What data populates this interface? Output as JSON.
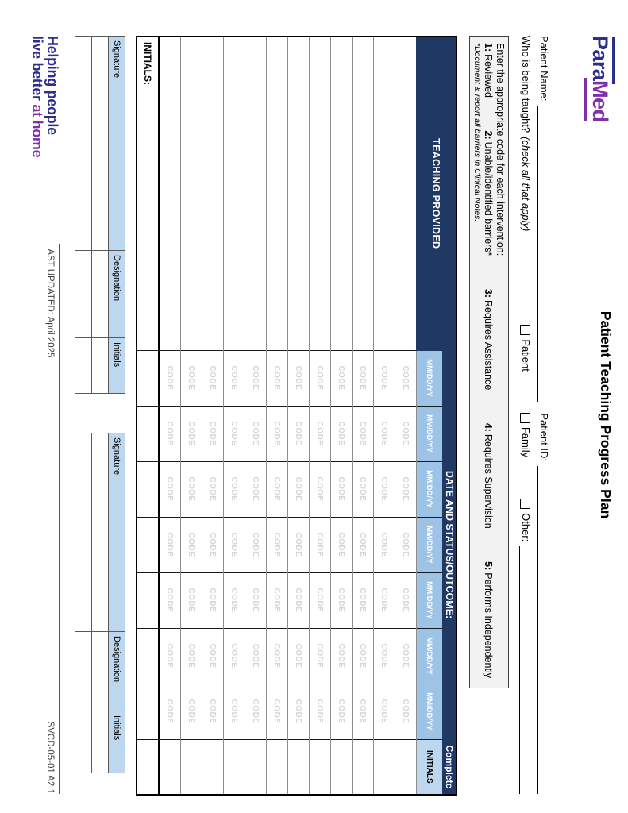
{
  "page": {
    "title": "Patient Teaching Progress Plan",
    "logo": {
      "part1": "Para",
      "part2": "Med"
    },
    "tagline": {
      "line1": "Helping people",
      "line2_prefix": "live better ",
      "line2_suffix": "at home"
    },
    "footer": {
      "last_updated": "LAST UPDATED: April 2025",
      "doc_code": "SVCD-05-01 A2.1"
    }
  },
  "fields": {
    "patient_name_label": "Patient Name:",
    "patient_id_label": "Patient ID:",
    "who_label": "Who is being taught?",
    "who_note": "(check all that apply)",
    "checkboxes": [
      {
        "label": "Patient"
      },
      {
        "label": "Family"
      },
      {
        "label": "Other:"
      }
    ]
  },
  "legend": {
    "line1": "Enter the appropriate code for each intervention:",
    "codes": [
      {
        "num": "1:",
        "text": "Reviewed"
      },
      {
        "num": "2:",
        "text": "Unable/identified barriers*"
      },
      {
        "num": "3:",
        "text": "Requires Assistance"
      },
      {
        "num": "4:",
        "text": "Requires Supervision"
      },
      {
        "num": "5:",
        "text": "Performs Independently"
      }
    ],
    "footnote": "*Document & report all barriers in Clinical Notes."
  },
  "table": {
    "col1_header": "TEACHING PROVIDED",
    "date_header": "DATE AND STATUS/OUTCOME:",
    "complete_header": "Complete",
    "initials_header": "INITIALS",
    "date_placeholder": "MM/DD/YY",
    "code_placeholder": "CODE",
    "date_columns": 7,
    "body_rows": 12,
    "last_row_label": "INITIALS:"
  },
  "signature_table": {
    "headers": [
      "Signature",
      "Designation",
      "Initials",
      "Signature",
      "Designation",
      "Initials"
    ],
    "rows": 2
  },
  "colors": {
    "navy": "#1F3864",
    "date_blue": "#9DC3E6",
    "pale_blue": "#BDD7EE",
    "logo_blue": "#2B2E8C",
    "logo_purple": "#8031A7"
  }
}
